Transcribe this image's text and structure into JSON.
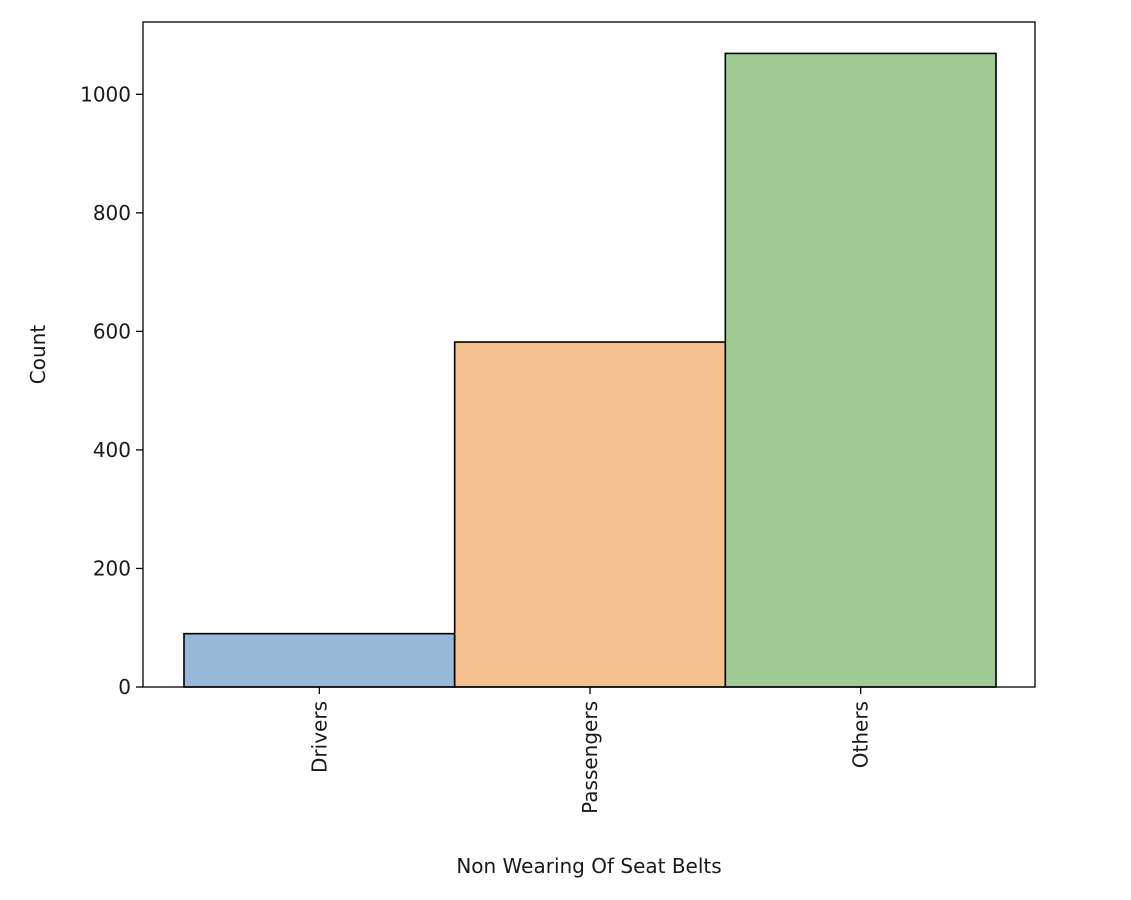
{
  "chart_data": {
    "type": "bar",
    "title": "",
    "xlabel": "Non Wearing Of Seat Belts",
    "ylabel": "Count",
    "categories": [
      "Drivers",
      "Passengers",
      "Others"
    ],
    "values": [
      90,
      582,
      1069
    ],
    "colors": [
      "#97b9d7",
      "#f4c08f",
      "#a0cb96"
    ],
    "edge_color": "#000000",
    "yticks": [
      0,
      200,
      400,
      600,
      800,
      1000
    ],
    "ylim": [
      0,
      1122
    ],
    "grid": false,
    "legend": false,
    "xtick_rotation": "vertical"
  }
}
